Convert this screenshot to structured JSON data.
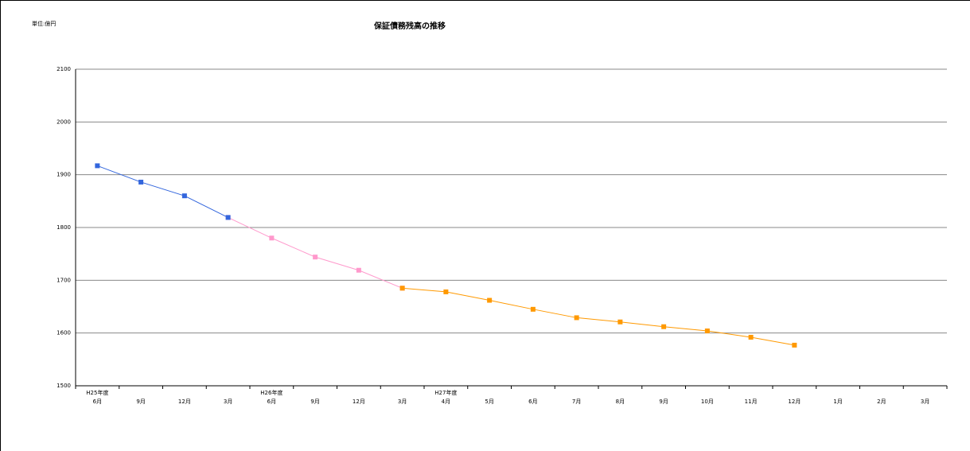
{
  "chart_data": {
    "type": "line",
    "title": "保証債務残高の推移",
    "unit_label": "単位:億円",
    "categories": [
      "6月",
      "9月",
      "12月",
      "3月",
      "6月",
      "9月",
      "12月",
      "3月",
      "4月",
      "5月",
      "6月",
      "7月",
      "8月",
      "9月",
      "10月",
      "11月",
      "12月",
      "1月",
      "2月",
      "3月"
    ],
    "category_years": [
      "H25年度",
      null,
      null,
      null,
      "H26年度",
      null,
      null,
      null,
      "H27年度",
      null,
      null,
      null,
      null,
      null,
      null,
      null,
      null,
      null,
      null,
      null
    ],
    "series": [
      {
        "color": "#ff99cc",
        "values": [
          null,
          null,
          null,
          1819,
          1780,
          1744,
          1719,
          1685,
          null,
          null,
          null,
          null,
          null,
          null,
          null,
          null,
          null,
          null,
          null,
          null
        ]
      },
      {
        "color": "#3366dd",
        "values": [
          1917,
          1886,
          1860,
          1819,
          null,
          null,
          null,
          null,
          null,
          null,
          null,
          null,
          null,
          null,
          null,
          null,
          null,
          null,
          null,
          null
        ]
      },
      {
        "color": "#ff9900",
        "values": [
          null,
          null,
          null,
          null,
          null,
          null,
          null,
          1685,
          1678,
          1662,
          1645,
          1629,
          1621,
          1612,
          1604,
          1592,
          1577,
          null,
          null,
          null
        ]
      }
    ],
    "ylim": [
      1500,
      2100
    ],
    "yticks": [
      1500,
      1600,
      1700,
      1800,
      1900,
      2000,
      2100
    ],
    "grid": true
  }
}
